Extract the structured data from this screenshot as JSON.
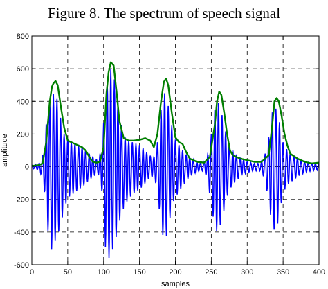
{
  "figure": {
    "caption": "Figure 8. The spectrum of speech signal"
  },
  "chart_data": {
    "type": "line",
    "title": "",
    "xlabel": "samples",
    "ylabel": "amplitude",
    "xlim": [
      0,
      400
    ],
    "ylim": [
      -600,
      800
    ],
    "xticks": [
      0,
      50,
      100,
      150,
      200,
      250,
      300,
      350,
      400
    ],
    "yticks": [
      -600,
      -400,
      -200,
      0,
      200,
      400,
      600,
      800
    ],
    "grid": true,
    "colors": {
      "signal": "#0000ff",
      "envelope": "#007f00"
    },
    "series": [
      {
        "role": "signal",
        "style": "oscillating",
        "period": 5,
        "x": [
          0,
          10,
          16,
          22,
          28,
          32,
          36,
          40,
          45,
          50,
          56,
          62,
          68,
          74,
          80,
          86,
          92,
          98,
          102,
          106,
          110,
          114,
          118,
          123,
          128,
          134,
          140,
          146,
          152,
          158,
          164,
          170,
          175,
          180,
          184,
          188,
          193,
          198,
          204,
          210,
          216,
          222,
          230,
          238,
          244,
          250,
          255,
          259,
          263,
          268,
          274,
          280,
          286,
          292,
          300,
          310,
          318,
          324,
          330,
          334,
          338,
          342,
          346,
          350,
          356,
          362,
          368,
          374,
          380,
          390,
          400
        ],
        "upper": [
          10,
          20,
          80,
          350,
          430,
          460,
          400,
          300,
          200,
          170,
          150,
          140,
          130,
          110,
          80,
          60,
          40,
          120,
          420,
          560,
          600,
          560,
          460,
          300,
          190,
          160,
          150,
          140,
          130,
          100,
          70,
          60,
          150,
          350,
          460,
          420,
          300,
          180,
          140,
          100,
          70,
          50,
          30,
          20,
          50,
          200,
          350,
          400,
          360,
          250,
          150,
          100,
          70,
          50,
          30,
          20,
          20,
          60,
          180,
          320,
          370,
          340,
          250,
          150,
          100,
          80,
          60,
          40,
          30,
          20,
          15
        ],
        "lower": [
          -10,
          -20,
          -80,
          -380,
          -520,
          -460,
          -420,
          -360,
          -260,
          -190,
          -170,
          -150,
          -130,
          -110,
          -80,
          -60,
          -40,
          -160,
          -480,
          -580,
          -520,
          -500,
          -420,
          -320,
          -250,
          -200,
          -170,
          -150,
          -130,
          -100,
          -70,
          -60,
          -140,
          -380,
          -440,
          -420,
          -300,
          -200,
          -160,
          -120,
          -80,
          -55,
          -30,
          -25,
          -60,
          -230,
          -380,
          -400,
          -350,
          -260,
          -150,
          -110,
          -80,
          -55,
          -35,
          -25,
          -25,
          -70,
          -200,
          -350,
          -390,
          -360,
          -260,
          -160,
          -110,
          -90,
          -70,
          -50,
          -35,
          -25,
          -20
        ]
      },
      {
        "role": "envelope",
        "style": "smooth",
        "x": [
          0,
          10,
          15,
          20,
          25,
          28,
          30,
          33,
          36,
          40,
          45,
          50,
          55,
          60,
          65,
          70,
          75,
          80,
          85,
          90,
          95,
          100,
          104,
          107,
          110,
          114,
          118,
          122,
          128,
          135,
          142,
          150,
          158,
          165,
          170,
          175,
          180,
          184,
          187,
          190,
          195,
          200,
          205,
          210,
          215,
          220,
          230,
          240,
          248,
          255,
          258,
          261,
          264,
          268,
          272,
          276,
          280,
          290,
          300,
          310,
          320,
          330,
          335,
          338,
          341,
          344,
          348,
          352,
          356,
          360,
          370,
          380,
          390,
          400
        ],
        "y": [
          5,
          10,
          20,
          150,
          400,
          490,
          510,
          525,
          500,
          380,
          240,
          160,
          150,
          140,
          130,
          120,
          100,
          60,
          30,
          25,
          30,
          120,
          450,
          580,
          640,
          620,
          460,
          280,
          175,
          160,
          160,
          165,
          175,
          160,
          120,
          200,
          400,
          520,
          540,
          500,
          330,
          180,
          150,
          140,
          90,
          50,
          30,
          25,
          60,
          260,
          400,
          460,
          440,
          330,
          200,
          100,
          70,
          50,
          40,
          30,
          30,
          70,
          260,
          400,
          420,
          400,
          310,
          200,
          130,
          80,
          50,
          30,
          20,
          25
        ]
      }
    ]
  }
}
